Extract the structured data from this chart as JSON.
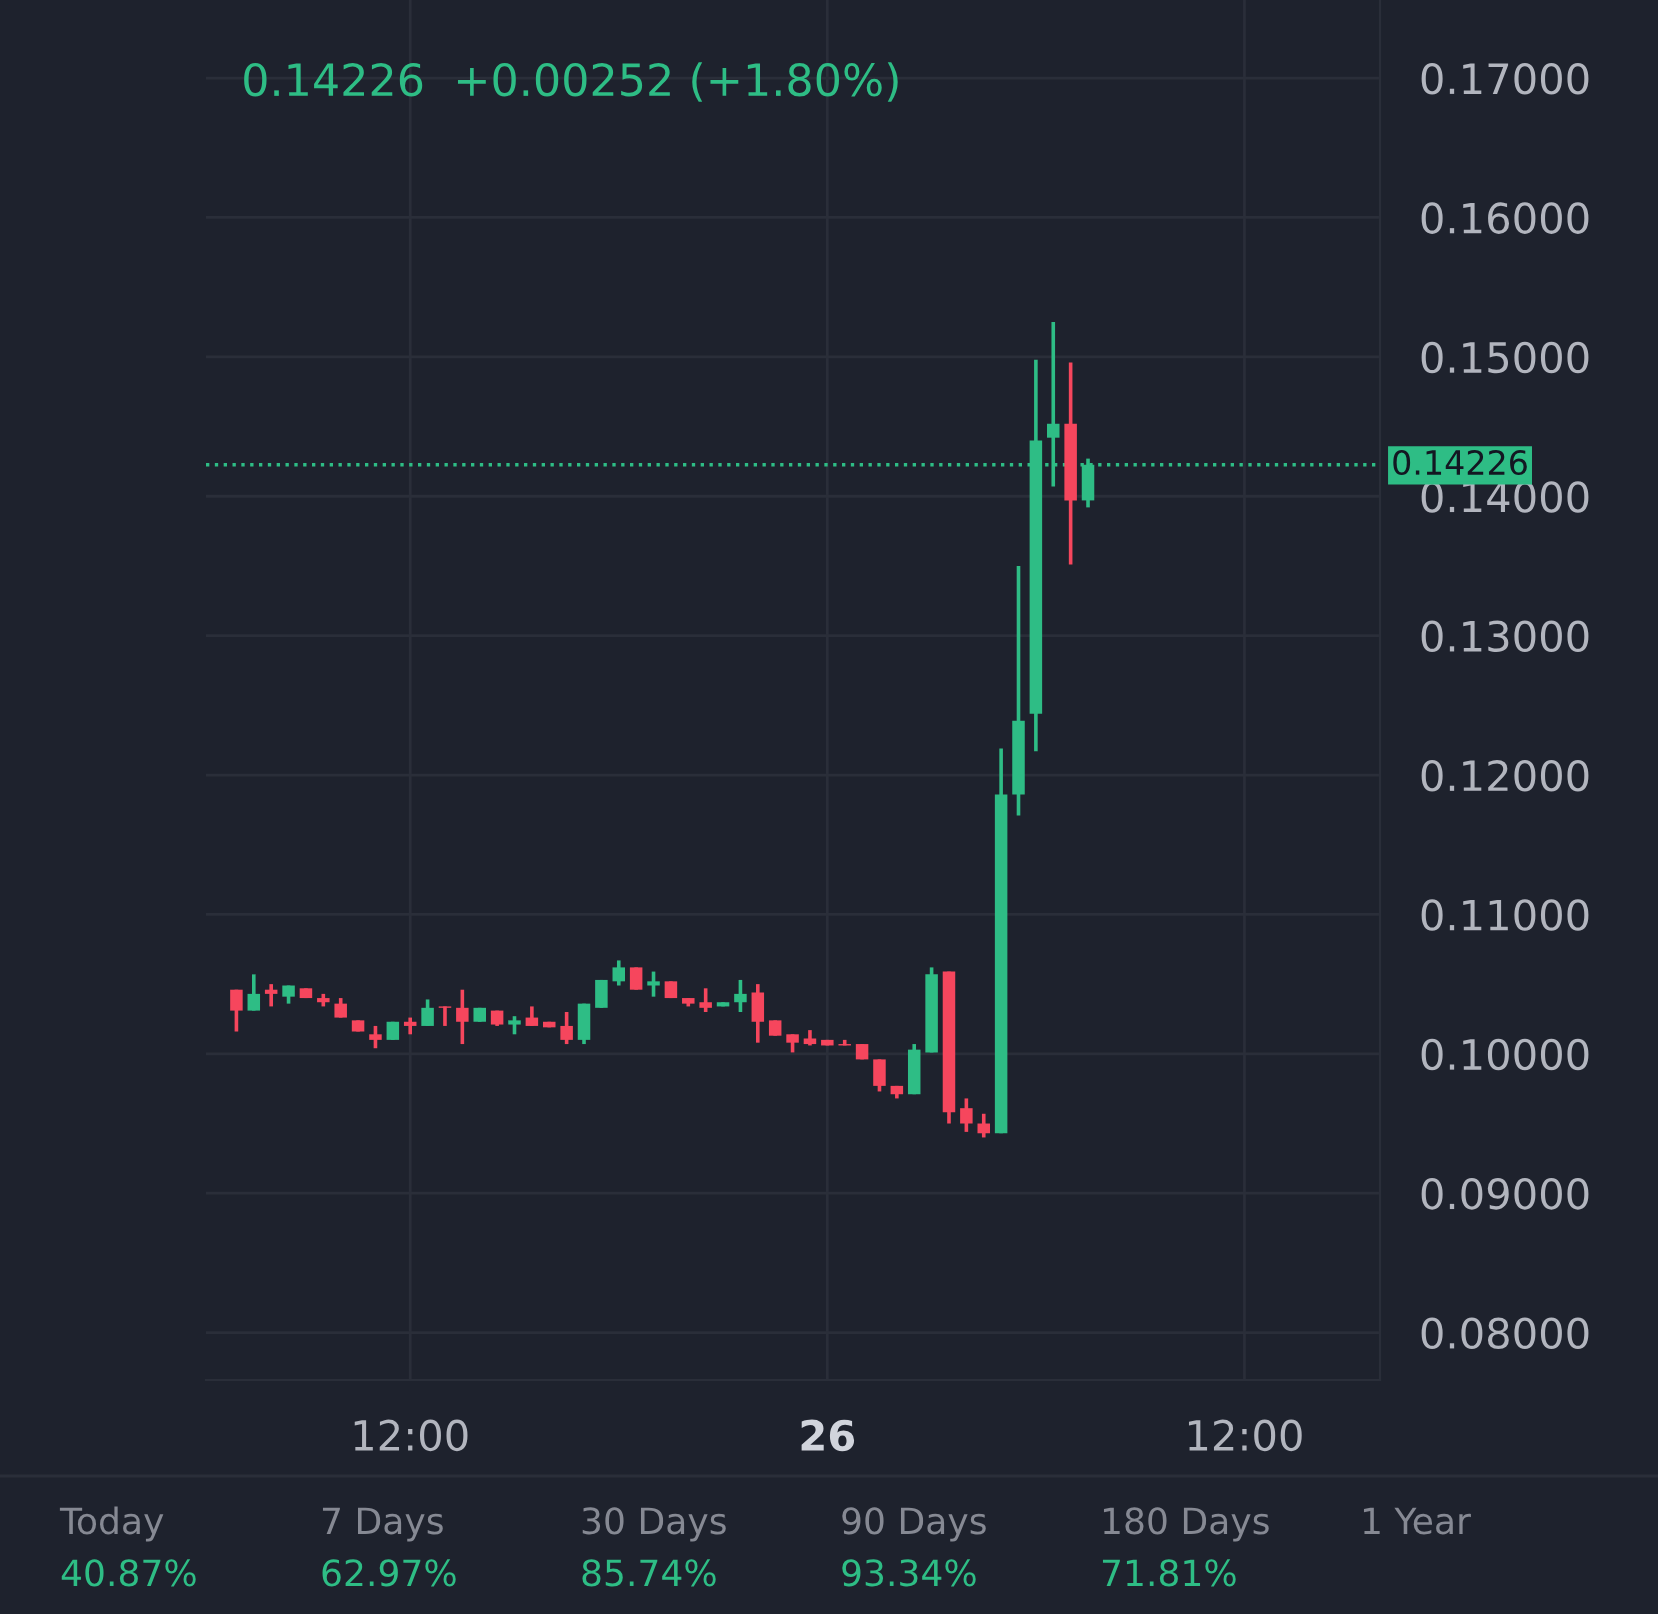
{
  "chart_data": {
    "type": "candlestick",
    "subtitle": "0.14226  +0.00252 (+1.80%)",
    "categories": [
      null,
      null,
      null,
      null,
      null,
      null,
      null,
      null,
      null,
      null,
      "12:00",
      null,
      null,
      null,
      null,
      null,
      null,
      null,
      null,
      null,
      null,
      null,
      null,
      null,
      null,
      null,
      null,
      null,
      null,
      null,
      null,
      null,
      null,
      null,
      "26",
      null,
      null,
      null,
      null,
      null,
      null,
      null,
      null,
      null,
      null,
      null,
      null,
      null,
      null,
      null,
      null,
      null,
      null,
      null,
      null,
      null,
      null,
      null,
      "12:00",
      null,
      null,
      null,
      null,
      null,
      null
    ],
    "ohlc": [
      [
        0.1046,
        0.1046,
        0.1016,
        0.1031
      ],
      [
        0.1031,
        0.1057,
        0.1031,
        0.1043
      ],
      [
        0.1046,
        0.105,
        0.1034,
        0.1043
      ],
      [
        0.1041,
        0.1049,
        0.1036,
        0.1049
      ],
      [
        0.1047,
        0.1047,
        0.104,
        0.104
      ],
      [
        0.104,
        0.1043,
        0.1034,
        0.1037
      ],
      [
        0.1036,
        0.104,
        0.1026,
        0.1026
      ],
      [
        0.1024,
        0.1024,
        0.1016,
        0.1016
      ],
      [
        0.1014,
        0.102,
        0.1004,
        0.101
      ],
      [
        0.101,
        0.1023,
        0.101,
        0.1023
      ],
      [
        0.1023,
        0.1026,
        0.1014,
        0.102
      ],
      [
        0.102,
        0.1039,
        0.102,
        0.1033
      ],
      [
        0.1034,
        0.1034,
        0.102,
        0.1033
      ],
      [
        0.1033,
        0.1046,
        0.1007,
        0.1023
      ],
      [
        0.1023,
        0.1033,
        0.1023,
        0.1033
      ],
      [
        0.1031,
        0.1031,
        0.102,
        0.1021
      ],
      [
        0.1021,
        0.1027,
        0.1014,
        0.1024
      ],
      [
        0.1026,
        0.1034,
        0.102,
        0.102
      ],
      [
        0.1023,
        0.1023,
        0.1019,
        0.1019
      ],
      [
        0.102,
        0.103,
        0.1007,
        0.101
      ],
      [
        0.101,
        0.1036,
        0.1007,
        0.1036
      ],
      [
        0.1033,
        0.1053,
        0.1033,
        0.1053
      ],
      [
        0.1052,
        0.1067,
        0.1049,
        0.1062
      ],
      [
        0.1062,
        0.1062,
        0.1046,
        0.1046
      ],
      [
        0.1049,
        0.1059,
        0.1041,
        0.1052
      ],
      [
        0.1052,
        0.1052,
        0.104,
        0.104
      ],
      [
        0.104,
        0.104,
        0.1034,
        0.1036
      ],
      [
        0.1037,
        0.1047,
        0.103,
        0.1033
      ],
      [
        0.1034,
        0.1037,
        0.1034,
        0.1037
      ],
      [
        0.1037,
        0.1053,
        0.103,
        0.1043
      ],
      [
        0.1044,
        0.105,
        0.1008,
        0.1023
      ],
      [
        0.1024,
        0.1024,
        0.1013,
        0.1013
      ],
      [
        0.1014,
        0.1014,
        0.1001,
        0.1008
      ],
      [
        0.1011,
        0.1017,
        0.1006,
        0.1007
      ],
      [
        0.101,
        0.101,
        0.1006,
        0.1006
      ],
      [
        0.1007,
        0.101,
        0.1006,
        0.1006
      ],
      [
        0.1007,
        0.1007,
        0.0996,
        0.0996
      ],
      [
        0.0996,
        0.0996,
        0.0973,
        0.0977
      ],
      [
        0.0977,
        0.0977,
        0.0968,
        0.0971
      ],
      [
        0.0971,
        0.1007,
        0.0971,
        0.1003
      ],
      [
        0.1001,
        0.1062,
        0.1001,
        0.1057
      ],
      [
        0.1059,
        0.1059,
        0.095,
        0.0958
      ],
      [
        0.0961,
        0.0968,
        0.0944,
        0.095
      ],
      [
        0.095,
        0.0957,
        0.094,
        0.0943
      ],
      [
        0.0943,
        0.1219,
        0.0943,
        0.1186
      ],
      [
        0.1186,
        0.135,
        0.1171,
        0.1239
      ],
      [
        0.1244,
        0.1498,
        0.1217,
        0.144
      ],
      [
        0.1442,
        0.1525,
        0.1407,
        0.1452
      ],
      [
        0.1452,
        0.1496,
        0.1351,
        0.1397
      ],
      [
        0.1397,
        0.1427,
        0.1392,
        0.14226
      ],
      null,
      null,
      null,
      null,
      null,
      null,
      null,
      null,
      null,
      null,
      null,
      null,
      null,
      null,
      null
    ],
    "colors": [
      "#f6465d",
      "#2ebd85",
      "#f6465d",
      "#2ebd85",
      "#f6465d",
      "#f6465d",
      "#f6465d",
      "#f6465d",
      "#f6465d",
      "#2ebd85",
      "#f6465d",
      "#2ebd85",
      "#f6465d",
      "#f6465d",
      "#2ebd85",
      "#f6465d",
      "#2ebd85",
      "#f6465d",
      "#f6465d",
      "#f6465d",
      "#2ebd85",
      "#2ebd85",
      "#2ebd85",
      "#f6465d",
      "#2ebd85",
      "#f6465d",
      "#f6465d",
      "#f6465d",
      "#2ebd85",
      "#2ebd85",
      "#f6465d",
      "#f6465d",
      "#f6465d",
      "#f6465d",
      "#f6465d",
      "#f6465d",
      "#f6465d",
      "#f6465d",
      "#f6465d",
      "#2ebd85",
      "#2ebd85",
      "#f6465d",
      "#f6465d",
      "#f6465d",
      "#2ebd85",
      "#2ebd85",
      "#2ebd85",
      "#2ebd85",
      "#f6465d",
      "#2ebd85",
      null,
      null,
      null,
      null,
      null,
      null,
      null,
      null,
      null,
      null,
      null,
      null,
      null,
      null,
      null
    ],
    "ylim": [
      0.0766,
      0.1756
    ],
    "yticks": [
      {
        "value": 0.08,
        "label": "0.08000"
      },
      {
        "value": 0.09,
        "label": "0.09000"
      },
      {
        "value": 0.1,
        "label": "0.10000"
      },
      {
        "value": 0.11,
        "label": "0.11000"
      },
      {
        "value": 0.12,
        "label": "0.12000"
      },
      {
        "value": 0.13,
        "label": "0.13000"
      },
      {
        "value": 0.14,
        "label": "0.14000"
      },
      {
        "value": 0.15,
        "label": "0.15000"
      },
      {
        "value": 0.16,
        "label": "0.16000"
      },
      {
        "value": 0.17,
        "label": "0.17000"
      }
    ],
    "ref_lines": [
      {
        "axis": "y",
        "value": 0.14226,
        "label": "0.14226",
        "color": "#2ebd85",
        "line_style": "dotted"
      }
    ],
    "grid": true,
    "annotations": [
      "Today\n40.87%",
      "7 Days\n62.97%",
      "30 Days\n85.74%",
      "90 Days\n93.34%",
      "180 Days\n71.81%",
      "1 Year"
    ]
  }
}
